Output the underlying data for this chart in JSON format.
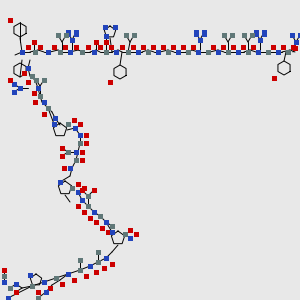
{
  "bg": "#e8e8e8",
  "O": "#cc0000",
  "N": "#2244bb",
  "C": "#607878",
  "bond": "#000000",
  "sq": 5,
  "lw": 0.7
}
